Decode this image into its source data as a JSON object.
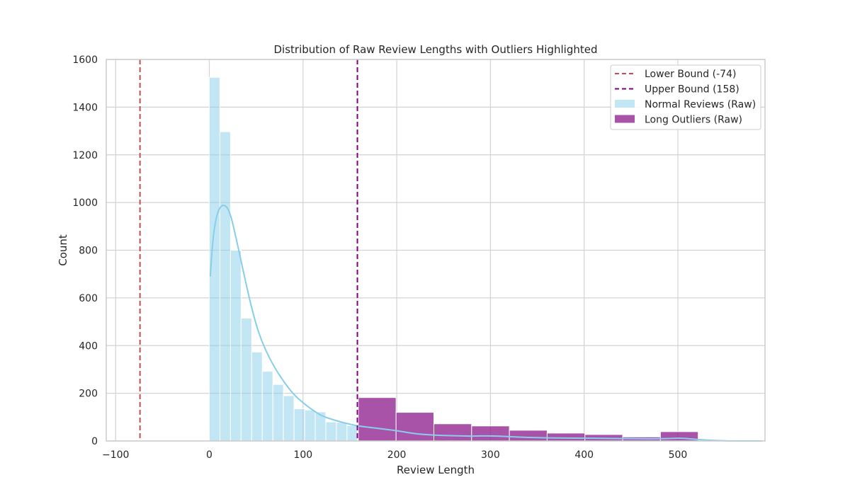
{
  "chart_data": {
    "type": "histogram",
    "title": "Distribution of Raw Review Lengths with Outliers Highlighted",
    "xlabel": "Review Length",
    "ylabel": "Count",
    "xlim": [
      -110,
      593
    ],
    "ylim": [
      0,
      1600
    ],
    "xticks": [
      -100,
      0,
      100,
      200,
      300,
      400,
      500
    ],
    "xtick_labels": [
      "−100",
      "0",
      "100",
      "200",
      "300",
      "400",
      "500"
    ],
    "yticks": [
      0,
      200,
      400,
      600,
      800,
      1000,
      1200,
      1400,
      1600
    ],
    "ytick_labels": [
      "0",
      "200",
      "400",
      "600",
      "800",
      "1000",
      "1200",
      "1400",
      "1600"
    ],
    "grid": true,
    "legend_position": "top-right",
    "reference_lines": [
      {
        "name": "Lower Bound (-74)",
        "x": -74,
        "color": "#c44e52",
        "style": "dashed"
      },
      {
        "name": "Upper Bound (158)",
        "x": 158,
        "color": "#800080",
        "style": "dashed"
      }
    ],
    "series": [
      {
        "name": "Normal Reviews (Raw)",
        "kind": "histogram",
        "color": "#87ceeb",
        "bins": [
          {
            "x0": 0,
            "x1": 11.3,
            "count": 1525
          },
          {
            "x0": 11.3,
            "x1": 22.6,
            "count": 1297
          },
          {
            "x0": 22.6,
            "x1": 33.9,
            "count": 800
          },
          {
            "x0": 33.9,
            "x1": 45.2,
            "count": 515
          },
          {
            "x0": 45.2,
            "x1": 56.5,
            "count": 373
          },
          {
            "x0": 56.5,
            "x1": 67.8,
            "count": 292
          },
          {
            "x0": 67.8,
            "x1": 79.1,
            "count": 237
          },
          {
            "x0": 79.1,
            "x1": 90.4,
            "count": 190
          },
          {
            "x0": 90.4,
            "x1": 101.7,
            "count": 135
          },
          {
            "x0": 101.7,
            "x1": 113.0,
            "count": 130
          },
          {
            "x0": 113.0,
            "x1": 124.3,
            "count": 122
          },
          {
            "x0": 124.3,
            "x1": 135.6,
            "count": 80
          },
          {
            "x0": 135.6,
            "x1": 146.9,
            "count": 78
          },
          {
            "x0": 146.9,
            "x1": 158.2,
            "count": 65
          }
        ],
        "kde": {
          "color": "#87ceeb",
          "x": [
            1,
            4,
            8,
            12,
            16,
            20,
            24,
            28,
            32,
            38,
            45,
            52,
            60,
            70,
            80,
            90,
            100,
            110,
            120,
            135,
            150,
            160,
            175,
            190,
            205,
            220,
            240,
            260,
            280,
            300,
            320,
            340,
            360,
            380,
            400,
            420,
            440,
            460,
            480,
            495,
            505,
            515,
            530,
            545,
            560,
            575,
            590
          ],
          "y": [
            690,
            860,
            950,
            985,
            990,
            975,
            930,
            860,
            790,
            680,
            560,
            460,
            380,
            305,
            245,
            195,
            160,
            130,
            105,
            85,
            70,
            62,
            55,
            48,
            40,
            30,
            24,
            22,
            20,
            22,
            18,
            15,
            13,
            12,
            12,
            11,
            10,
            9,
            9,
            11,
            12,
            8,
            4,
            1,
            0,
            0,
            0
          ]
        }
      },
      {
        "name": "Long Outliers (Raw)",
        "kind": "histogram",
        "color": "#8b1a8b",
        "bins": [
          {
            "x0": 159,
            "x1": 199.3,
            "count": 182
          },
          {
            "x0": 199.3,
            "x1": 239.6,
            "count": 120
          },
          {
            "x0": 239.6,
            "x1": 279.9,
            "count": 72
          },
          {
            "x0": 279.9,
            "x1": 320.2,
            "count": 63
          },
          {
            "x0": 320.2,
            "x1": 360.5,
            "count": 45
          },
          {
            "x0": 360.5,
            "x1": 400.8,
            "count": 33
          },
          {
            "x0": 400.8,
            "x1": 441.1,
            "count": 27
          },
          {
            "x0": 441.1,
            "x1": 481.4,
            "count": 17
          },
          {
            "x0": 481.4,
            "x1": 521.7,
            "count": 39
          }
        ]
      }
    ]
  }
}
